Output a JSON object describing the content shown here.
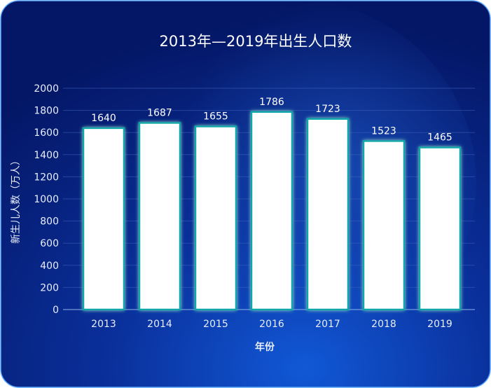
{
  "chart_data": {
    "type": "bar",
    "title": "2013年—2019年出生人口数",
    "x_label": "年份",
    "y_label": "新生儿人数（万人）",
    "categories": [
      "2013",
      "2014",
      "2015",
      "2016",
      "2017",
      "2018",
      "2019"
    ],
    "values": [
      1640,
      1687,
      1655,
      1786,
      1723,
      1523,
      1465
    ],
    "color": "#ffffff",
    "ylim": [
      0,
      2000
    ],
    "yticks": [
      0,
      200,
      400,
      600,
      800,
      1000,
      1200,
      1400,
      1600,
      1800,
      2000
    ],
    "grid": true
  }
}
